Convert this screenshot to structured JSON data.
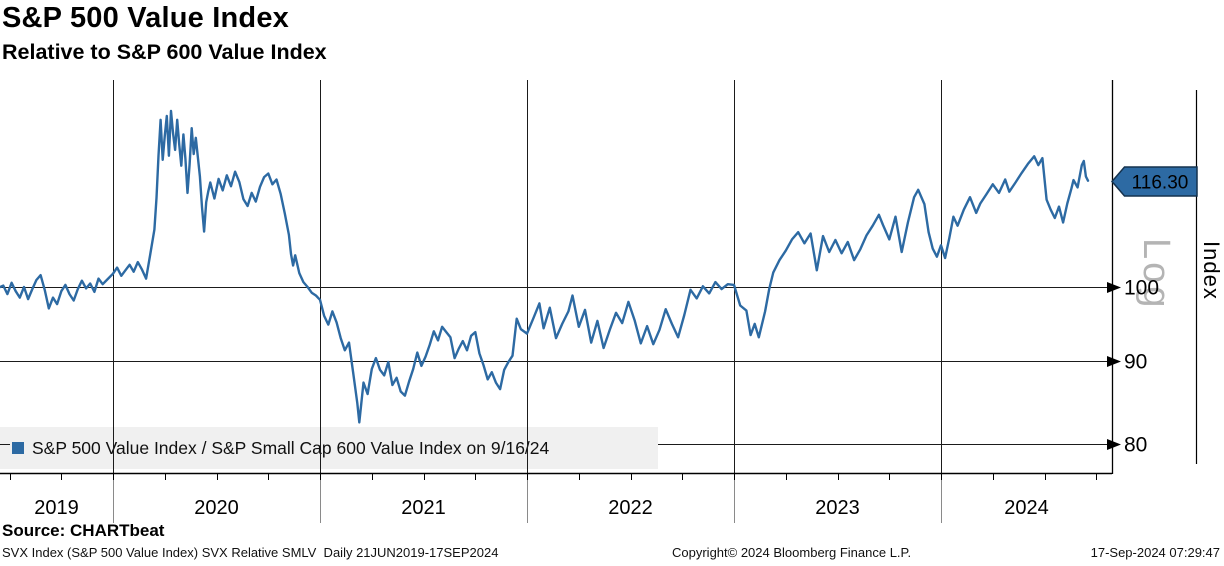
{
  "header": {
    "title": "S&P 500 Value Index",
    "subtitle": "Relative to S&P 600 Value Index"
  },
  "chart_data": {
    "type": "line",
    "title": "S&P 500 Value Index",
    "subtitle": "Relative to S&P 600 Value Index",
    "grid": true,
    "x_axis": {
      "range_years": [
        2019.455,
        2024.827
      ],
      "range_label": "21JUN2019-17SEP2024",
      "tick_years": [
        2020,
        2021,
        2022,
        2023,
        2024
      ],
      "year_labels": [
        "2019",
        "2020",
        "2021",
        "2022",
        "2023",
        "2024"
      ],
      "minor_tick_interval_years": 0.25
    },
    "y_axis": {
      "scale": "log",
      "scale_label": "Log",
      "label": "Index",
      "range": [
        76.8,
        134.2
      ],
      "ticks": [
        100,
        90,
        80
      ],
      "tick_labels": [
        "100",
        "90",
        "80"
      ]
    },
    "last_value": 116.3,
    "last_value_label": "116.30",
    "last_date": "9/16/24",
    "legend": {
      "label": "S&P 500 Value Index / S&P Small Cap 600 Value Index on 9/16/24",
      "swatch_color": "#2d6aa3",
      "position": "bottom-left"
    },
    "series": [
      {
        "name": "S&P 500 Value Index / S&P Small Cap 600 Value Index",
        "color": "#2d6aa3",
        "points": [
          [
            2019.455,
            100.0
          ],
          [
            2019.47,
            100.2
          ],
          [
            2019.49,
            99.0
          ],
          [
            2019.51,
            100.6
          ],
          [
            2019.53,
            99.4
          ],
          [
            2019.55,
            98.5
          ],
          [
            2019.57,
            100.0
          ],
          [
            2019.59,
            98.3
          ],
          [
            2019.61,
            99.7
          ],
          [
            2019.63,
            101.0
          ],
          [
            2019.65,
            101.7
          ],
          [
            2019.67,
            99.6
          ],
          [
            2019.69,
            97.0
          ],
          [
            2019.71,
            98.5
          ],
          [
            2019.73,
            97.6
          ],
          [
            2019.75,
            99.4
          ],
          [
            2019.77,
            100.3
          ],
          [
            2019.79,
            99.0
          ],
          [
            2019.81,
            98.1
          ],
          [
            2019.83,
            99.7
          ],
          [
            2019.85,
            100.9
          ],
          [
            2019.87,
            99.8
          ],
          [
            2019.89,
            100.5
          ],
          [
            2019.91,
            99.3
          ],
          [
            2019.93,
            101.2
          ],
          [
            2019.95,
            100.4
          ],
          [
            2019.97,
            101.0
          ],
          [
            2020.0,
            101.9
          ],
          [
            2020.02,
            102.8
          ],
          [
            2020.04,
            101.6
          ],
          [
            2020.06,
            102.4
          ],
          [
            2020.08,
            103.2
          ],
          [
            2020.1,
            102.2
          ],
          [
            2020.12,
            103.6
          ],
          [
            2020.14,
            102.5
          ],
          [
            2020.16,
            101.2
          ],
          [
            2020.18,
            104.8
          ],
          [
            2020.2,
            108.5
          ],
          [
            2020.21,
            113.5
          ],
          [
            2020.22,
            120.5
          ],
          [
            2020.23,
            126.8
          ],
          [
            2020.24,
            119.8
          ],
          [
            2020.25,
            124.0
          ],
          [
            2020.26,
            127.5
          ],
          [
            2020.27,
            120.5
          ],
          [
            2020.28,
            128.4
          ],
          [
            2020.29,
            124.5
          ],
          [
            2020.3,
            121.5
          ],
          [
            2020.31,
            126.8
          ],
          [
            2020.32,
            122.5
          ],
          [
            2020.33,
            118.8
          ],
          [
            2020.34,
            124.2
          ],
          [
            2020.35,
            120.0
          ],
          [
            2020.36,
            114.3
          ],
          [
            2020.37,
            119.0
          ],
          [
            2020.38,
            125.3
          ],
          [
            2020.39,
            120.8
          ],
          [
            2020.4,
            123.6
          ],
          [
            2020.41,
            120.2
          ],
          [
            2020.42,
            117.0
          ],
          [
            2020.43,
            112.0
          ],
          [
            2020.44,
            108.2
          ],
          [
            2020.45,
            112.8
          ],
          [
            2020.46,
            114.5
          ],
          [
            2020.47,
            116.0
          ],
          [
            2020.49,
            113.4
          ],
          [
            2020.51,
            116.6
          ],
          [
            2020.53,
            114.7
          ],
          [
            2020.55,
            117.2
          ],
          [
            2020.57,
            115.4
          ],
          [
            2020.59,
            117.8
          ],
          [
            2020.61,
            116.1
          ],
          [
            2020.63,
            113.3
          ],
          [
            2020.65,
            112.2
          ],
          [
            2020.67,
            114.3
          ],
          [
            2020.69,
            112.9
          ],
          [
            2020.71,
            115.3
          ],
          [
            2020.73,
            116.9
          ],
          [
            2020.75,
            117.5
          ],
          [
            2020.77,
            115.7
          ],
          [
            2020.79,
            116.5
          ],
          [
            2020.81,
            114.1
          ],
          [
            2020.83,
            111.0
          ],
          [
            2020.85,
            107.7
          ],
          [
            2020.86,
            104.8
          ],
          [
            2020.87,
            103.1
          ],
          [
            2020.88,
            104.6
          ],
          [
            2020.9,
            102.0
          ],
          [
            2020.92,
            100.7
          ],
          [
            2020.94,
            100.0
          ],
          [
            2020.96,
            99.2
          ],
          [
            2020.98,
            98.8
          ],
          [
            2021.0,
            98.2
          ],
          [
            2021.02,
            96.0
          ],
          [
            2021.04,
            94.8
          ],
          [
            2021.06,
            96.6
          ],
          [
            2021.08,
            95.1
          ],
          [
            2021.1,
            93.0
          ],
          [
            2021.12,
            91.4
          ],
          [
            2021.14,
            92.4
          ],
          [
            2021.16,
            88.6
          ],
          [
            2021.18,
            84.8
          ],
          [
            2021.19,
            82.5
          ],
          [
            2021.21,
            87.3
          ],
          [
            2021.23,
            85.9
          ],
          [
            2021.25,
            89.0
          ],
          [
            2021.27,
            90.4
          ],
          [
            2021.29,
            88.9
          ],
          [
            2021.31,
            88.2
          ],
          [
            2021.33,
            89.9
          ],
          [
            2021.35,
            87.0
          ],
          [
            2021.37,
            87.9
          ],
          [
            2021.39,
            86.2
          ],
          [
            2021.41,
            85.7
          ],
          [
            2021.43,
            87.4
          ],
          [
            2021.45,
            89.0
          ],
          [
            2021.47,
            91.1
          ],
          [
            2021.49,
            89.4
          ],
          [
            2021.51,
            90.6
          ],
          [
            2021.53,
            92.1
          ],
          [
            2021.55,
            93.9
          ],
          [
            2021.57,
            92.7
          ],
          [
            2021.59,
            94.5
          ],
          [
            2021.61,
            93.8
          ],
          [
            2021.63,
            93.1
          ],
          [
            2021.65,
            90.4
          ],
          [
            2021.67,
            91.6
          ],
          [
            2021.69,
            92.6
          ],
          [
            2021.71,
            91.4
          ],
          [
            2021.73,
            93.3
          ],
          [
            2021.75,
            93.8
          ],
          [
            2021.77,
            91.0
          ],
          [
            2021.79,
            89.5
          ],
          [
            2021.81,
            87.7
          ],
          [
            2021.83,
            88.6
          ],
          [
            2021.85,
            87.3
          ],
          [
            2021.87,
            86.5
          ],
          [
            2021.89,
            88.9
          ],
          [
            2021.91,
            89.9
          ],
          [
            2021.93,
            90.7
          ],
          [
            2021.95,
            95.6
          ],
          [
            2021.97,
            94.2
          ],
          [
            2022.0,
            93.6
          ],
          [
            2022.03,
            95.6
          ],
          [
            2022.06,
            97.7
          ],
          [
            2022.08,
            94.3
          ],
          [
            2022.11,
            97.1
          ],
          [
            2022.14,
            93.0
          ],
          [
            2022.17,
            94.9
          ],
          [
            2022.2,
            96.6
          ],
          [
            2022.22,
            98.8
          ],
          [
            2022.25,
            94.5
          ],
          [
            2022.28,
            96.8
          ],
          [
            2022.31,
            92.4
          ],
          [
            2022.34,
            95.3
          ],
          [
            2022.37,
            91.7
          ],
          [
            2022.4,
            94.1
          ],
          [
            2022.43,
            96.4
          ],
          [
            2022.46,
            95.0
          ],
          [
            2022.49,
            97.9
          ],
          [
            2022.52,
            95.4
          ],
          [
            2022.55,
            92.3
          ],
          [
            2022.58,
            94.6
          ],
          [
            2022.61,
            92.2
          ],
          [
            2022.64,
            94.1
          ],
          [
            2022.67,
            96.9
          ],
          [
            2022.7,
            94.9
          ],
          [
            2022.73,
            93.1
          ],
          [
            2022.76,
            96.1
          ],
          [
            2022.79,
            99.6
          ],
          [
            2022.82,
            98.4
          ],
          [
            2022.85,
            100.1
          ],
          [
            2022.88,
            99.1
          ],
          [
            2022.91,
            100.7
          ],
          [
            2022.94,
            99.7
          ],
          [
            2022.97,
            100.4
          ],
          [
            2023.0,
            100.3
          ],
          [
            2023.03,
            97.4
          ],
          [
            2023.06,
            96.7
          ],
          [
            2023.08,
            93.4
          ],
          [
            2023.1,
            94.9
          ],
          [
            2023.12,
            93.1
          ],
          [
            2023.15,
            96.6
          ],
          [
            2023.17,
            99.7
          ],
          [
            2023.19,
            102.1
          ],
          [
            2023.22,
            103.9
          ],
          [
            2023.25,
            105.3
          ],
          [
            2023.28,
            107.0
          ],
          [
            2023.31,
            108.1
          ],
          [
            2023.34,
            106.4
          ],
          [
            2023.37,
            107.9
          ],
          [
            2023.4,
            102.4
          ],
          [
            2023.43,
            107.5
          ],
          [
            2023.46,
            105.1
          ],
          [
            2023.49,
            106.9
          ],
          [
            2023.52,
            104.9
          ],
          [
            2023.55,
            106.6
          ],
          [
            2023.58,
            103.9
          ],
          [
            2023.61,
            105.5
          ],
          [
            2023.64,
            107.6
          ],
          [
            2023.67,
            109.1
          ],
          [
            2023.7,
            110.8
          ],
          [
            2023.72,
            109.2
          ],
          [
            2023.75,
            107.0
          ],
          [
            2023.78,
            110.5
          ],
          [
            2023.81,
            105.1
          ],
          [
            2023.84,
            109.6
          ],
          [
            2023.87,
            113.6
          ],
          [
            2023.89,
            114.8
          ],
          [
            2023.92,
            112.5
          ],
          [
            2023.94,
            108.1
          ],
          [
            2023.96,
            105.6
          ],
          [
            2023.98,
            104.4
          ],
          [
            2024.0,
            106.1
          ],
          [
            2024.02,
            104.2
          ],
          [
            2024.04,
            107.2
          ],
          [
            2024.06,
            110.5
          ],
          [
            2024.08,
            109.1
          ],
          [
            2024.11,
            111.6
          ],
          [
            2024.14,
            113.6
          ],
          [
            2024.17,
            111.1
          ],
          [
            2024.19,
            112.6
          ],
          [
            2024.22,
            114.1
          ],
          [
            2024.25,
            115.7
          ],
          [
            2024.28,
            114.3
          ],
          [
            2024.31,
            116.5
          ],
          [
            2024.33,
            114.5
          ],
          [
            2024.36,
            116.0
          ],
          [
            2024.39,
            117.6
          ],
          [
            2024.42,
            119.1
          ],
          [
            2024.45,
            120.4
          ],
          [
            2024.47,
            118.9
          ],
          [
            2024.49,
            120.1
          ],
          [
            2024.51,
            113.2
          ],
          [
            2024.53,
            111.6
          ],
          [
            2024.55,
            110.3
          ],
          [
            2024.57,
            112.1
          ],
          [
            2024.59,
            109.6
          ],
          [
            2024.61,
            112.6
          ],
          [
            2024.63,
            115.0
          ],
          [
            2024.64,
            116.4
          ],
          [
            2024.66,
            115.2
          ],
          [
            2024.68,
            118.9
          ],
          [
            2024.69,
            119.6
          ],
          [
            2024.7,
            117.0
          ],
          [
            2024.71,
            116.3
          ]
        ]
      }
    ]
  },
  "footer": {
    "source": "Source: CHARTbeat",
    "status_left": "SVX Index (S&P 500 Value Index) SVX Relative SMLV  Daily 21JUN2019-17SEP2024",
    "copyright": "Copyright© 2024 Bloomberg Finance L.P.",
    "timestamp": "17-Sep-2024 07:29:47"
  }
}
